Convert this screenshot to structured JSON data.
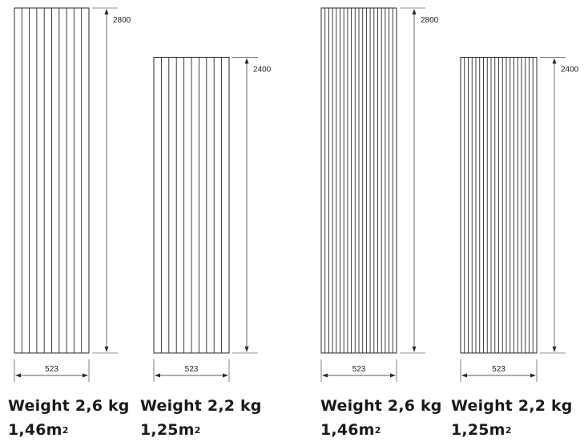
{
  "panels": [
    {
      "id": "panel-1",
      "height_label": "2800",
      "width_label": "523",
      "slats": 10,
      "weight_label": "Weight 2,6 kg",
      "area_label": "1,46m",
      "area_unit_sup": "2"
    },
    {
      "id": "panel-2",
      "height_label": "2400",
      "width_label": "523",
      "slats": 10,
      "weight_label": "Weight 2,2 kg",
      "area_label": "1,25m",
      "area_unit_sup": "2"
    },
    {
      "id": "panel-3",
      "height_label": "2800",
      "width_label": "523",
      "slats": 20,
      "weight_label": "Weight 2,6 kg",
      "area_label": "1,46m",
      "area_unit_sup": "2"
    },
    {
      "id": "panel-4",
      "height_label": "2400",
      "width_label": "523",
      "slats": 20,
      "weight_label": "Weight 2,2 kg",
      "area_label": "1,25m",
      "area_unit_sup": "2"
    }
  ]
}
